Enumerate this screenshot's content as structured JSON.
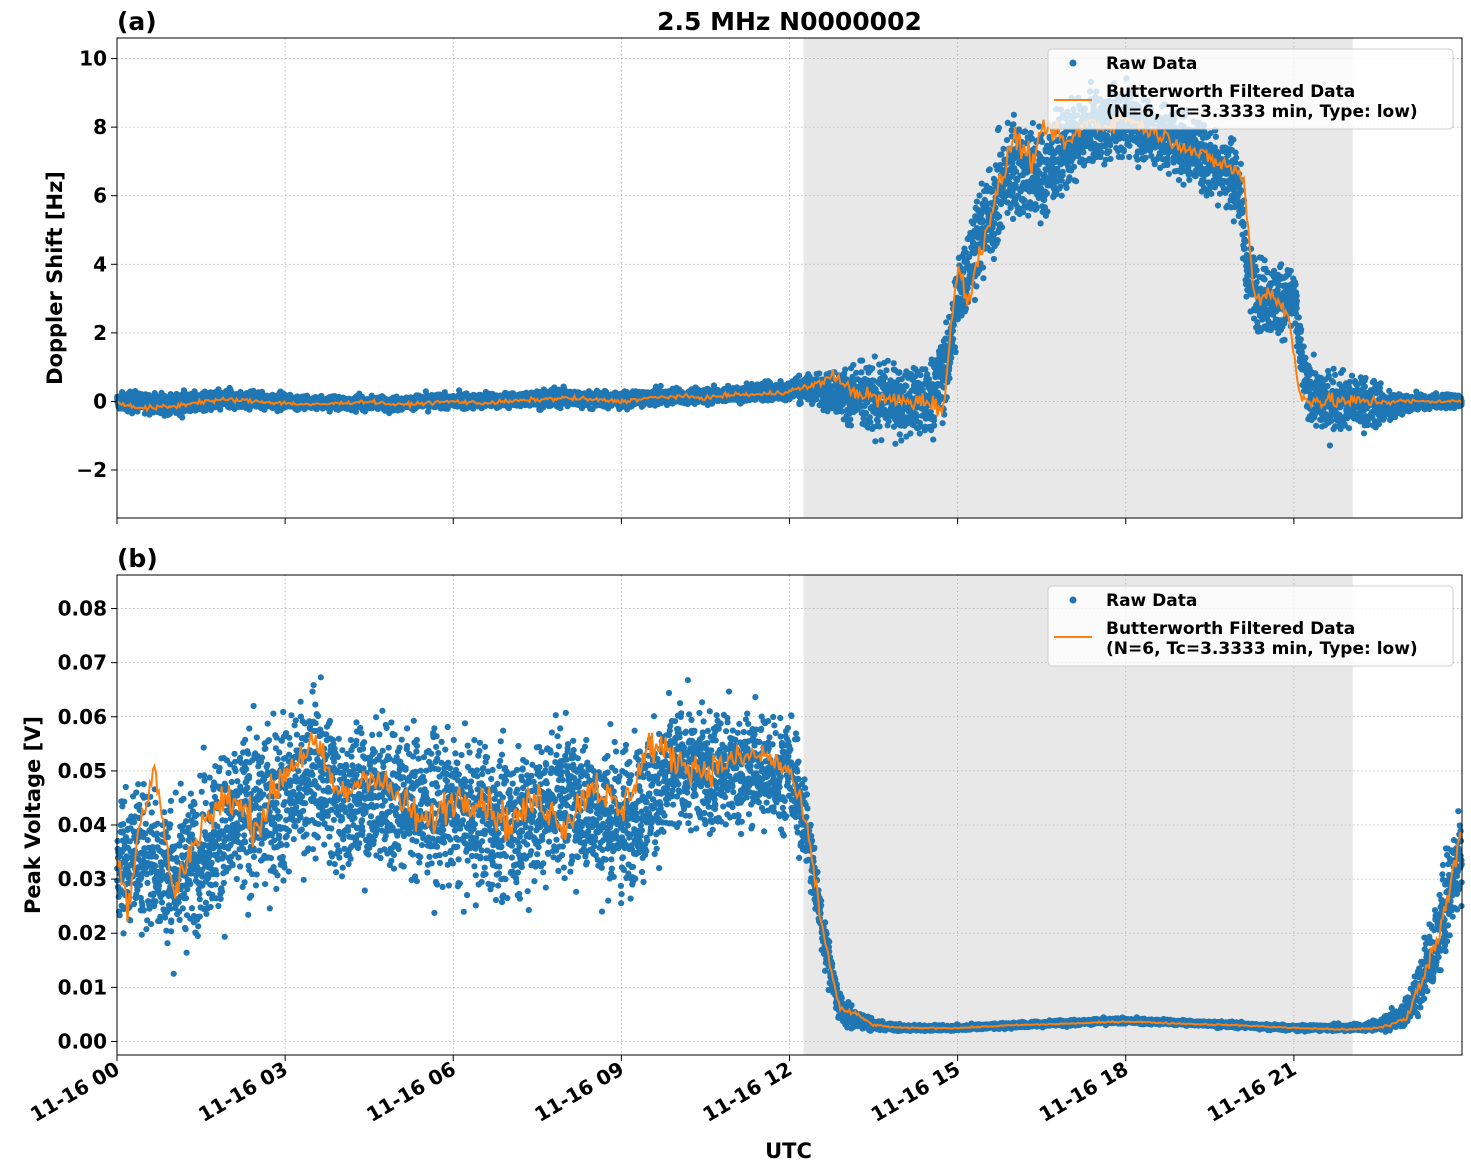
{
  "chart_data": [
    {
      "type": "scatter",
      "panel_label": "(a)",
      "title": "2.5 MHz N0000002",
      "xlabel": "",
      "ylabel": "Doppler Shift [Hz]",
      "ylim": [
        -3.4,
        10.6
      ],
      "yticks": [
        -2,
        0,
        2,
        4,
        6,
        8,
        10
      ],
      "ytick_labels": [
        "−2",
        "0",
        "2",
        "4",
        "6",
        "8",
        "10"
      ],
      "xlim_hours": [
        0,
        24
      ],
      "grid": true,
      "legend_position": "top-right",
      "shaded_region_hours": [
        12.25,
        22.05
      ],
      "series": [
        {
          "name": "Raw Data",
          "style": "points",
          "color": "#1f77b4",
          "envelope": {
            "x_hours": [
              0,
              1,
              2,
              3,
              4,
              5,
              6,
              7,
              8,
              9,
              10,
              11,
              12,
              12.5,
              13,
              13.5,
              14,
              14.5,
              14.8,
              15,
              15.3,
              15.6,
              16,
              16.5,
              17,
              17.5,
              18,
              18.5,
              19,
              19.5,
              20,
              20.2,
              20.5,
              21,
              21.2,
              21.5,
              22,
              22.5,
              23,
              23.5,
              24
            ],
            "center": [
              0,
              -0.1,
              0.05,
              0,
              -0.05,
              -0.05,
              0,
              0.05,
              0.1,
              0.05,
              0.15,
              0.2,
              0.35,
              0.4,
              0.2,
              0.05,
              0,
              0,
              1,
              3,
              4.5,
              5.5,
              7,
              6.5,
              7.5,
              8,
              8.2,
              7.8,
              7.5,
              7,
              6.5,
              3.5,
              3,
              3,
              0.5,
              0,
              0,
              -0.1,
              -0.05,
              0,
              0
            ],
            "spread": [
              0.4,
              0.5,
              0.4,
              0.35,
              0.3,
              0.3,
              0.35,
              0.35,
              0.4,
              0.35,
              0.35,
              0.35,
              0.45,
              0.7,
              1.2,
              1.5,
              1.6,
              1.6,
              1.8,
              2,
              2,
              2,
              2.5,
              2,
              1.8,
              1.5,
              1.4,
              1.4,
              1.5,
              1.5,
              1.5,
              1.6,
              1.6,
              1.6,
              1.2,
              1.3,
              1.2,
              0.9,
              0.4,
              0.3,
              0.3
            ]
          }
        },
        {
          "name": "Butterworth Filtered Data\n(N=6, Tc=3.3333 min, Type: low)",
          "name_line1": "Butterworth Filtered Data",
          "name_line2": "(N=6, Tc=3.3333 min, Type: low)",
          "style": "line",
          "color": "#ff7f0e",
          "x_hours": [
            0,
            0.5,
            1,
            1.5,
            2,
            2.5,
            3,
            3.5,
            4,
            4.5,
            5,
            5.5,
            6,
            6.5,
            7,
            7.5,
            8,
            8.5,
            9,
            9.5,
            10,
            10.5,
            11,
            11.5,
            12,
            12.5,
            12.8,
            13,
            13.5,
            14,
            14.5,
            14.75,
            14.85,
            15,
            15.2,
            15.5,
            15.8,
            16,
            16.3,
            16.6,
            17,
            17.3,
            17.6,
            18,
            18.3,
            18.6,
            19,
            19.3,
            19.6,
            19.9,
            20.1,
            20.3,
            20.6,
            20.9,
            21.1,
            21.2,
            21.5,
            22,
            22.5,
            23,
            23.5,
            24
          ],
          "y": [
            -0.05,
            -0.2,
            -0.15,
            0,
            0.05,
            0,
            -0.05,
            -0.1,
            -0.05,
            0,
            -0.1,
            -0.05,
            0,
            -0.05,
            0,
            0.05,
            0.1,
            0.05,
            0,
            0.1,
            0.15,
            0.1,
            0.2,
            0.2,
            0.3,
            0.5,
            0.8,
            0.4,
            0.1,
            0,
            0,
            -0.2,
            1.5,
            4,
            3,
            5,
            6.5,
            7.8,
            7,
            8,
            7.5,
            8.2,
            8,
            8.3,
            8,
            7.8,
            7.5,
            7.2,
            7,
            6.8,
            6.5,
            3,
            3.2,
            2.5,
            0.2,
            0.1,
            0,
            0,
            0,
            0,
            0,
            0
          ]
        }
      ]
    },
    {
      "type": "scatter",
      "panel_label": "(b)",
      "title": "",
      "xlabel": "UTC",
      "ylabel": "Peak Voltage [V]",
      "ylim": [
        -0.0025,
        0.0862
      ],
      "yticks": [
        0,
        0.01,
        0.02,
        0.03,
        0.04,
        0.05,
        0.06,
        0.07,
        0.08
      ],
      "ytick_labels": [
        "0.00",
        "0.01",
        "0.02",
        "0.03",
        "0.04",
        "0.05",
        "0.06",
        "0.07",
        "0.08"
      ],
      "xlim_hours": [
        0,
        24
      ],
      "xticks_hours": [
        0,
        3,
        6,
        9,
        12,
        15,
        18,
        21
      ],
      "xtick_labels": [
        "11-16 00",
        "11-16 03",
        "11-16 06",
        "11-16 09",
        "11-16 12",
        "11-16 15",
        "11-16 18",
        "11-16 21"
      ],
      "grid": true,
      "legend_position": "top-right",
      "shaded_region_hours": [
        12.25,
        22.05
      ],
      "series": [
        {
          "name": "Raw Data",
          "style": "points",
          "color": "#1f77b4",
          "envelope": {
            "x_hours": [
              0,
              0.5,
              1,
              1.5,
              2,
              3,
              3.5,
              4,
              5,
              6,
              7,
              8,
              9,
              10,
              11,
              12,
              12.3,
              12.6,
              12.9,
              13.2,
              13.5,
              14,
              15,
              16,
              17,
              18,
              19,
              20,
              21,
              22,
              22.5,
              23,
              23.3,
              23.6,
              23.8,
              24
            ],
            "center": [
              0.033,
              0.035,
              0.03,
              0.035,
              0.04,
              0.045,
              0.05,
              0.045,
              0.045,
              0.042,
              0.04,
              0.045,
              0.04,
              0.05,
              0.05,
              0.05,
              0.04,
              0.02,
              0.006,
              0.004,
              0.003,
              0.0025,
              0.0025,
              0.003,
              0.0035,
              0.0038,
              0.0035,
              0.003,
              0.0025,
              0.0025,
              0.003,
              0.005,
              0.012,
              0.02,
              0.03,
              0.035
            ],
            "spread": [
              0.018,
              0.02,
              0.02,
              0.02,
              0.022,
              0.022,
              0.022,
              0.02,
              0.02,
              0.02,
              0.02,
              0.02,
              0.02,
              0.018,
              0.016,
              0.015,
              0.012,
              0.008,
              0.004,
              0.0025,
              0.0012,
              0.0008,
              0.0008,
              0.0008,
              0.0008,
              0.0008,
              0.0008,
              0.0008,
              0.0008,
              0.0009,
              0.0015,
              0.004,
              0.008,
              0.012,
              0.015,
              0.015
            ]
          }
        },
        {
          "name": "Butterworth Filtered Data\n(N=6, Tc=3.3333 min, Type: low)",
          "name_line1": "Butterworth Filtered Data",
          "name_line2": "(N=6, Tc=3.3333 min, Type: low)",
          "style": "line",
          "color": "#ff7f0e",
          "x_hours": [
            0,
            0.2,
            0.4,
            0.7,
            1,
            1.5,
            2,
            2.5,
            3,
            3.5,
            4,
            4.5,
            5,
            5.5,
            6,
            6.5,
            7,
            7.5,
            8,
            8.5,
            9,
            9.5,
            10,
            10.5,
            11,
            11.5,
            12,
            12.3,
            12.6,
            12.9,
            13.2,
            13.5,
            14,
            15,
            16,
            17,
            17.5,
            18,
            19,
            20,
            21,
            22,
            22.5,
            23,
            23.3,
            23.6,
            23.8,
            24
          ],
          "y": [
            0.035,
            0.025,
            0.04,
            0.05,
            0.027,
            0.04,
            0.045,
            0.04,
            0.05,
            0.055,
            0.045,
            0.05,
            0.045,
            0.04,
            0.045,
            0.045,
            0.04,
            0.045,
            0.04,
            0.048,
            0.042,
            0.055,
            0.052,
            0.05,
            0.052,
            0.053,
            0.05,
            0.04,
            0.02,
            0.006,
            0.005,
            0.003,
            0.0025,
            0.0025,
            0.003,
            0.0033,
            0.0035,
            0.0037,
            0.0033,
            0.003,
            0.0025,
            0.0022,
            0.0025,
            0.004,
            0.012,
            0.02,
            0.03,
            0.04
          ]
        }
      ]
    }
  ]
}
